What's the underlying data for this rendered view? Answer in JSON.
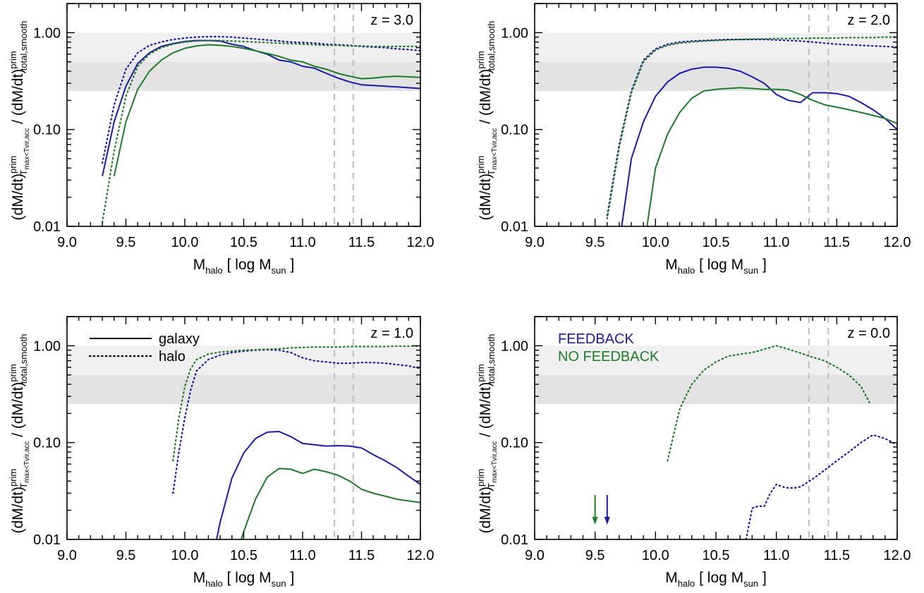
{
  "colors": {
    "feedback": "#1a1aa6",
    "no_feedback": "#1e7b2a",
    "band_light": "#f0f0f0",
    "band_dark": "#e3e3e3",
    "vline": "#bdbdbd"
  },
  "axes": {
    "xlabel_main": "M",
    "xlabel_sub": "halo",
    "xlabel_rest": " [ log M",
    "xlabel_sub2": "sun",
    "xlabel_end": " ]",
    "ylabel_a": "(dM/dt)",
    "ylabel_a_sup": "prim",
    "ylabel_a_sub": "T",
    "ylabel_a_subsub": "max<Tvir,acc",
    "ylabel_b": " / (dM/dt)",
    "ylabel_b_sup": "prim",
    "ylabel_b_sub": "total,smooth",
    "xticks": [
      "9.0",
      "9.5",
      "10.0",
      "10.5",
      "11.0",
      "11.5",
      "12.0"
    ],
    "yticks": [
      "0.01",
      "0.10",
      "1.00"
    ]
  },
  "legend": {
    "solid": "galaxy",
    "dotted": "halo",
    "feedback": "FEEDBACK",
    "no_feedback": "NO FEEDBACK"
  },
  "chart_data": [
    {
      "type": "line",
      "title": "z = 3.0",
      "xlim": [
        9.0,
        12.0
      ],
      "ylim": [
        0.01,
        2.0
      ],
      "yscale": "log",
      "bands": [
        [
          0.5,
          1.0
        ],
        [
          0.25,
          0.5
        ]
      ],
      "vlines": [
        11.27,
        11.43
      ],
      "series": [
        {
          "style": "solid",
          "model": "feedback",
          "x": [
            9.3,
            9.4,
            9.5,
            9.6,
            9.7,
            9.8,
            9.9,
            10.0,
            10.1,
            10.2,
            10.3,
            10.4,
            10.5,
            10.6,
            10.7,
            10.8,
            10.9,
            11.0,
            11.1,
            11.2,
            11.3,
            11.4,
            11.5,
            11.6,
            11.7,
            11.8,
            11.9,
            12.0
          ],
          "y": [
            0.033,
            0.12,
            0.28,
            0.48,
            0.62,
            0.72,
            0.77,
            0.81,
            0.83,
            0.83,
            0.82,
            0.76,
            0.72,
            0.65,
            0.6,
            0.52,
            0.5,
            0.45,
            0.43,
            0.38,
            0.34,
            0.31,
            0.29,
            0.285,
            0.28,
            0.275,
            0.27,
            0.265
          ]
        },
        {
          "style": "solid",
          "model": "no_feedback",
          "x": [
            9.4,
            9.5,
            9.6,
            9.7,
            9.8,
            9.9,
            10.0,
            10.1,
            10.2,
            10.3,
            10.4,
            10.5,
            10.6,
            10.7,
            10.8,
            10.9,
            11.0,
            11.1,
            11.2,
            11.3,
            11.4,
            11.5,
            11.6,
            11.7,
            11.8,
            11.9,
            12.0
          ],
          "y": [
            0.033,
            0.12,
            0.26,
            0.4,
            0.52,
            0.62,
            0.69,
            0.73,
            0.75,
            0.74,
            0.72,
            0.69,
            0.65,
            0.61,
            0.57,
            0.52,
            0.5,
            0.45,
            0.42,
            0.38,
            0.355,
            0.335,
            0.34,
            0.35,
            0.355,
            0.35,
            0.345
          ]
        },
        {
          "style": "dotted",
          "model": "feedback",
          "x": [
            9.3,
            9.4,
            9.5,
            9.6,
            9.7,
            9.8,
            9.9,
            10.0,
            10.1,
            10.2,
            10.3,
            10.4,
            10.5,
            10.6,
            10.7,
            10.8,
            10.9,
            11.0,
            11.1,
            11.2,
            11.3,
            11.4,
            11.5,
            11.6,
            11.7,
            11.8,
            11.9,
            12.0
          ],
          "y": [
            0.045,
            0.18,
            0.42,
            0.62,
            0.74,
            0.8,
            0.85,
            0.88,
            0.9,
            0.91,
            0.91,
            0.9,
            0.88,
            0.86,
            0.84,
            0.82,
            0.8,
            0.79,
            0.78,
            0.76,
            0.75,
            0.74,
            0.72,
            0.71,
            0.7,
            0.68,
            0.67,
            0.65
          ]
        },
        {
          "style": "dotted",
          "model": "no_feedback",
          "x": [
            9.3,
            9.4,
            9.5,
            9.6,
            9.7,
            9.8,
            9.9,
            10.0,
            10.1,
            10.2,
            10.3,
            10.4,
            10.5,
            10.6,
            10.7,
            10.8,
            10.9,
            11.0,
            11.1,
            11.2,
            11.3,
            11.4,
            11.5,
            11.6,
            11.7,
            11.8,
            11.9,
            12.0
          ],
          "y": [
            0.011,
            0.06,
            0.22,
            0.45,
            0.6,
            0.7,
            0.76,
            0.8,
            0.82,
            0.83,
            0.83,
            0.82,
            0.81,
            0.8,
            0.79,
            0.78,
            0.77,
            0.76,
            0.75,
            0.74,
            0.74,
            0.73,
            0.73,
            0.72,
            0.72,
            0.72,
            0.72,
            0.72
          ]
        }
      ]
    },
    {
      "type": "line",
      "title": "z = 2.0",
      "xlim": [
        9.0,
        12.0
      ],
      "ylim": [
        0.01,
        2.0
      ],
      "yscale": "log",
      "bands": [
        [
          0.5,
          1.0
        ],
        [
          0.25,
          0.5
        ]
      ],
      "vlines": [
        11.27,
        11.43
      ],
      "series": [
        {
          "style": "solid",
          "model": "feedback",
          "x": [
            9.72,
            9.8,
            9.9,
            10.0,
            10.1,
            10.2,
            10.3,
            10.4,
            10.5,
            10.6,
            10.7,
            10.8,
            10.9,
            11.0,
            11.1,
            11.2,
            11.3,
            11.4,
            11.5,
            11.6,
            11.7,
            11.8,
            11.9,
            12.0
          ],
          "y": [
            0.01,
            0.05,
            0.12,
            0.22,
            0.31,
            0.38,
            0.42,
            0.44,
            0.44,
            0.43,
            0.4,
            0.35,
            0.3,
            0.23,
            0.2,
            0.19,
            0.24,
            0.24,
            0.235,
            0.22,
            0.19,
            0.16,
            0.13,
            0.1
          ]
        },
        {
          "style": "solid",
          "model": "no_feedback",
          "x": [
            9.93,
            10.0,
            10.1,
            10.2,
            10.3,
            10.4,
            10.5,
            10.6,
            10.7,
            10.8,
            10.9,
            11.0,
            11.1,
            11.2,
            11.3,
            11.4,
            11.5,
            11.6,
            11.7,
            11.8,
            11.9,
            12.0
          ],
          "y": [
            0.01,
            0.04,
            0.09,
            0.15,
            0.21,
            0.25,
            0.26,
            0.265,
            0.27,
            0.265,
            0.26,
            0.26,
            0.255,
            0.23,
            0.2,
            0.18,
            0.17,
            0.16,
            0.15,
            0.14,
            0.13,
            0.115
          ]
        },
        {
          "style": "dotted",
          "model": "feedback",
          "x": [
            9.6,
            9.7,
            9.8,
            9.9,
            10.0,
            10.1,
            10.2,
            10.3,
            10.4,
            10.5,
            10.6,
            10.7,
            10.8,
            10.9,
            11.0,
            11.1,
            11.2,
            11.3,
            11.4,
            11.5,
            11.6,
            11.7,
            11.8,
            11.9,
            12.0
          ],
          "y": [
            0.013,
            0.07,
            0.25,
            0.52,
            0.68,
            0.76,
            0.8,
            0.82,
            0.83,
            0.84,
            0.85,
            0.85,
            0.85,
            0.85,
            0.84,
            0.83,
            0.82,
            0.8,
            0.78,
            0.76,
            0.75,
            0.74,
            0.73,
            0.72,
            0.71
          ]
        },
        {
          "style": "dotted",
          "model": "no_feedback",
          "x": [
            9.6,
            9.7,
            9.8,
            9.9,
            10.0,
            10.1,
            10.2,
            10.3,
            10.4,
            10.5,
            10.6,
            10.7,
            10.8,
            10.9,
            11.0,
            11.1,
            11.2,
            11.3,
            11.4,
            11.5,
            11.6,
            11.7,
            11.8,
            11.9,
            12.0
          ],
          "y": [
            0.012,
            0.065,
            0.24,
            0.5,
            0.66,
            0.74,
            0.78,
            0.8,
            0.82,
            0.83,
            0.84,
            0.85,
            0.86,
            0.86,
            0.87,
            0.87,
            0.87,
            0.88,
            0.88,
            0.88,
            0.89,
            0.89,
            0.89,
            0.9,
            0.9
          ]
        }
      ]
    },
    {
      "type": "line",
      "title": "z = 1.0",
      "xlim": [
        9.0,
        12.0
      ],
      "ylim": [
        0.01,
        2.0
      ],
      "yscale": "log",
      "bands": [
        [
          0.5,
          1.0
        ],
        [
          0.25,
          0.5
        ]
      ],
      "vlines": [
        11.27,
        11.43
      ],
      "series": [
        {
          "style": "solid",
          "model": "feedback",
          "x": [
            10.27,
            10.3,
            10.4,
            10.5,
            10.6,
            10.7,
            10.8,
            10.9,
            11.0,
            11.1,
            11.2,
            11.3,
            11.4,
            11.5,
            11.6,
            11.7,
            11.8,
            11.9,
            12.0
          ],
          "y": [
            0.01,
            0.015,
            0.043,
            0.078,
            0.11,
            0.128,
            0.13,
            0.115,
            0.098,
            0.095,
            0.092,
            0.093,
            0.092,
            0.088,
            0.075,
            0.065,
            0.055,
            0.045,
            0.037
          ]
        },
        {
          "style": "solid",
          "model": "no_feedback",
          "x": [
            10.48,
            10.5,
            10.6,
            10.7,
            10.8,
            10.9,
            11.0,
            11.1,
            11.2,
            11.3,
            11.4,
            11.5,
            11.6,
            11.7,
            11.8,
            11.9,
            12.0
          ],
          "y": [
            0.01,
            0.012,
            0.026,
            0.044,
            0.054,
            0.053,
            0.048,
            0.053,
            0.05,
            0.046,
            0.04,
            0.033,
            0.03,
            0.028,
            0.026,
            0.025,
            0.024
          ]
        },
        {
          "style": "dotted",
          "model": "feedback",
          "x": [
            9.9,
            9.95,
            10.0,
            10.05,
            10.1,
            10.2,
            10.3,
            10.4,
            10.5,
            10.6,
            10.7,
            10.8,
            10.9,
            11.0,
            11.1,
            11.2,
            11.3,
            11.4,
            11.5,
            11.6,
            11.7,
            11.8,
            11.9,
            12.0
          ],
          "y": [
            0.03,
            0.08,
            0.18,
            0.35,
            0.55,
            0.72,
            0.8,
            0.85,
            0.88,
            0.9,
            0.91,
            0.9,
            0.85,
            0.75,
            0.7,
            0.68,
            0.66,
            0.66,
            0.67,
            0.67,
            0.66,
            0.64,
            0.62,
            0.58
          ]
        },
        {
          "style": "dotted",
          "model": "no_feedback",
          "x": [
            9.9,
            9.95,
            10.0,
            10.05,
            10.1,
            10.2,
            10.3,
            10.4,
            10.5,
            10.6,
            10.7,
            10.8,
            10.9,
            11.0,
            11.1,
            11.2,
            11.3,
            11.4,
            11.5,
            11.6,
            11.7,
            11.8,
            11.9,
            12.0
          ],
          "y": [
            0.065,
            0.18,
            0.38,
            0.58,
            0.72,
            0.82,
            0.86,
            0.88,
            0.9,
            0.91,
            0.92,
            0.93,
            0.95,
            0.96,
            0.97,
            0.97,
            0.97,
            0.98,
            0.98,
            0.98,
            0.98,
            0.99,
            0.99,
            0.99
          ]
        }
      ]
    },
    {
      "type": "line",
      "title": "z = 0.0",
      "xlim": [
        9.0,
        12.0
      ],
      "ylim": [
        0.01,
        2.0
      ],
      "yscale": "log",
      "bands": [
        [
          0.5,
          1.0
        ],
        [
          0.25,
          0.5
        ]
      ],
      "vlines": [
        11.27,
        11.43
      ],
      "arrows": [
        {
          "x": 9.5,
          "model": "no_feedback"
        },
        {
          "x": 9.6,
          "model": "feedback"
        }
      ],
      "series": [
        {
          "style": "dotted",
          "model": "feedback",
          "x": [
            10.75,
            10.8,
            10.85,
            10.9,
            10.95,
            11.0,
            11.05,
            11.1,
            11.15,
            11.2,
            11.3,
            11.4,
            11.5,
            11.6,
            11.7,
            11.8,
            11.9,
            12.0
          ],
          "y": [
            0.01,
            0.021,
            0.022,
            0.022,
            0.03,
            0.037,
            0.035,
            0.034,
            0.034,
            0.035,
            0.042,
            0.052,
            0.065,
            0.08,
            0.1,
            0.12,
            0.11,
            0.095
          ]
        },
        {
          "style": "dotted",
          "model": "no_feedback",
          "x": [
            10.1,
            10.15,
            10.2,
            10.25,
            10.3,
            10.4,
            10.5,
            10.6,
            10.7,
            10.8,
            10.9,
            11.0,
            11.1,
            11.2,
            11.3,
            11.4,
            11.5,
            11.6,
            11.7,
            11.77
          ],
          "y": [
            0.065,
            0.12,
            0.22,
            0.3,
            0.4,
            0.56,
            0.68,
            0.78,
            0.82,
            0.85,
            0.92,
            1.0,
            0.92,
            0.84,
            0.76,
            0.7,
            0.6,
            0.5,
            0.38,
            0.26
          ]
        }
      ]
    }
  ]
}
